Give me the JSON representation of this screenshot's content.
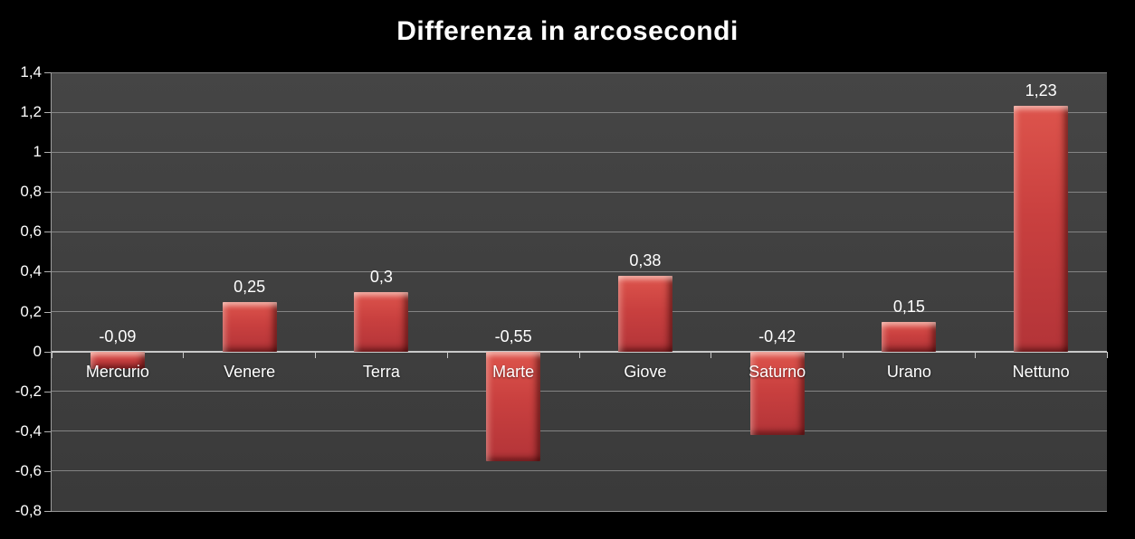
{
  "chart_data": {
    "type": "bar",
    "title": "Differenza in arcosecondi",
    "categories": [
      "Mercurio",
      "Venere",
      "Terra",
      "Marte",
      "Giove",
      "Saturno",
      "Urano",
      "Nettuno"
    ],
    "values": [
      -0.09,
      0.25,
      0.3,
      -0.55,
      0.38,
      -0.42,
      0.15,
      1.23
    ],
    "value_labels": [
      "-0,09",
      "0,25",
      "0,3",
      "-0,55",
      "0,38",
      "-0,42",
      "0,15",
      "1,23"
    ],
    "xlabel": "",
    "ylabel": "",
    "ylim": [
      -0.8,
      1.4
    ],
    "y_ticks": [
      1.4,
      1.2,
      1.0,
      0.8,
      0.6,
      0.4,
      0.2,
      0.0,
      -0.2,
      -0.4,
      -0.6,
      -0.8
    ],
    "y_tick_labels": [
      "1,4",
      "1,2",
      "1",
      "0,8",
      "0,6",
      "0,4",
      "0,2",
      "0",
      "-0,2",
      "-0,4",
      "-0,6",
      "-0,8"
    ],
    "grid": true,
    "legend": "none",
    "decimal_separator": ",",
    "colors": {
      "page_background": "#000000",
      "plot_background": "#3f3f3f",
      "gridline": "#8f8f8f",
      "zero_axis": "#c9c9c9",
      "bar_main": "#c9403f",
      "bar_light": "#dd544c",
      "bar_dark": "#b33438",
      "text": "#ffffff"
    }
  }
}
